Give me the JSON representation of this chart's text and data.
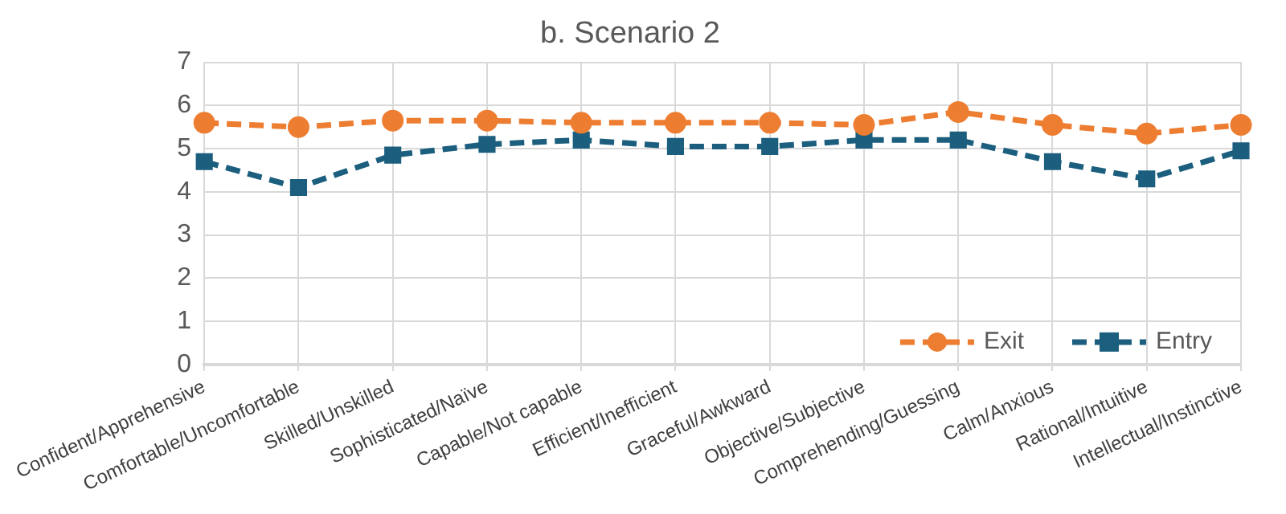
{
  "chart_data": {
    "type": "line",
    "title": "b. Scenario 2",
    "categories": [
      "Confident/Apprehensive",
      "Comfortable/Uncomfortable",
      "Skilled/Unskilled",
      "Sophisticated/Naïve",
      "Capable/Not capable",
      "Efficient/Inefficient",
      "Graceful/Awkward",
      "Objective/Subjective",
      "Comprehending/Guessing",
      "Calm/Anxious",
      "Rational/Intuitive",
      "Intellectual/Instinctive"
    ],
    "series": [
      {
        "name": "Exit",
        "color": "#ed7d31",
        "marker": "circle",
        "values": [
          5.6,
          5.5,
          5.65,
          5.65,
          5.6,
          5.6,
          5.6,
          5.55,
          5.85,
          5.55,
          5.35,
          5.55
        ]
      },
      {
        "name": "Entry",
        "color": "#1b5e7e",
        "marker": "square",
        "values": [
          4.7,
          4.1,
          4.85,
          5.1,
          5.2,
          5.05,
          5.05,
          5.2,
          5.2,
          4.7,
          4.3,
          4.95
        ]
      }
    ],
    "ylim": [
      0,
      7
    ],
    "yticks": [
      0,
      1,
      2,
      3,
      4,
      5,
      6,
      7
    ],
    "grid": true,
    "legend": "bottom right",
    "line_style": "dashed"
  }
}
